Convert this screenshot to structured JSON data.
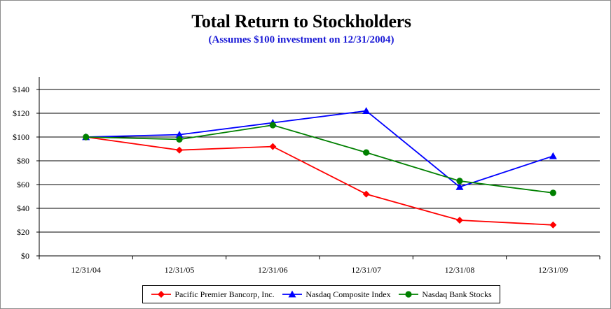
{
  "chart_data": {
    "type": "line",
    "title": "Total Return to Stockholders",
    "subtitle": "(Assumes $100 investment  on 12/31/2004)",
    "categories": [
      "12/31/04",
      "12/31/05",
      "12/31/06",
      "12/31/07",
      "12/31/08",
      "12/31/09"
    ],
    "ylim": [
      0,
      140
    ],
    "yticks": [
      0,
      20,
      40,
      60,
      80,
      100,
      120,
      140
    ],
    "ytick_labels": [
      "$0",
      "$20",
      "$40",
      "$60",
      "$80",
      "$100",
      "$120",
      "$140"
    ],
    "grid": true,
    "legend_position": "bottom",
    "series": [
      {
        "name": "Pacific Premier Bancorp, Inc.",
        "color": "#ff0000",
        "marker": "diamond",
        "values": [
          100,
          89,
          92,
          52,
          30,
          26
        ]
      },
      {
        "name": "Nasdaq Composite Index",
        "color": "#0000ff",
        "marker": "triangle",
        "values": [
          100,
          102,
          112,
          122,
          58,
          84
        ]
      },
      {
        "name": "Nasdaq Bank Stocks",
        "color": "#008000",
        "marker": "circle",
        "values": [
          100,
          98,
          110,
          87,
          63,
          53
        ]
      }
    ]
  }
}
